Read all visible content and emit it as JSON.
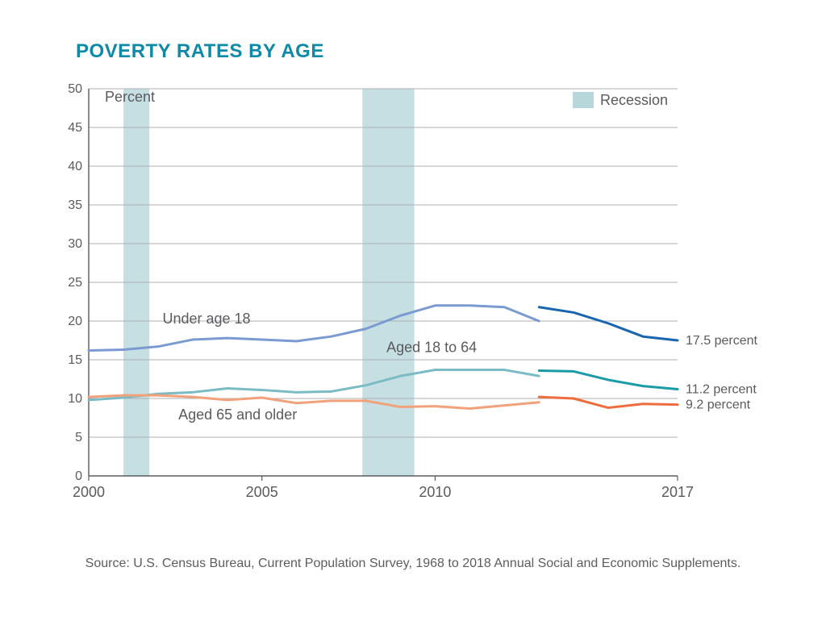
{
  "chart": {
    "type": "line",
    "title": "POVERTY RATES BY AGE",
    "title_color": "#0e8aa6",
    "title_fontsize": 24,
    "title_fontweight": 700,
    "background_color": "#ffffff",
    "plot_background": "#ffffff",
    "axis_color": "#595b5d",
    "grid_color": "#b0b2b4",
    "grid_stroke_width": 1,
    "text_color": "#595b5d",
    "tick_fontsize": 16,
    "label_fontsize": 18,
    "line_width": 3,
    "x": {
      "min": 2000,
      "max": 2017,
      "ticks": [
        2000,
        2005,
        2010,
        2017
      ]
    },
    "y": {
      "min": 0,
      "max": 50,
      "ticks": [
        0,
        5,
        10,
        15,
        20,
        25,
        30,
        35,
        40,
        45,
        50
      ],
      "unit_label": "Percent"
    },
    "recession_bands": {
      "color": "#b8d7db",
      "opacity": 0.8,
      "ranges": [
        [
          2001.0,
          2001.75
        ],
        [
          2007.9,
          2009.4
        ]
      ]
    },
    "legend": {
      "label": "Recession",
      "swatch_color": "#b8d7db"
    },
    "series": [
      {
        "name": "Under age 18",
        "label_pos": {
          "x": 2003.4,
          "y": 19.7
        },
        "end_label": "17.5 percent",
        "end_value": 17.5,
        "segments": [
          {
            "color": "#7a9ad1",
            "points": [
              [
                2000,
                16.2
              ],
              [
                2001,
                16.3
              ],
              [
                2002,
                16.7
              ],
              [
                2003,
                17.6
              ],
              [
                2004,
                17.8
              ],
              [
                2005,
                17.6
              ],
              [
                2006,
                17.4
              ],
              [
                2007,
                18.0
              ],
              [
                2008,
                19.0
              ],
              [
                2009,
                20.7
              ],
              [
                2010,
                22.0
              ],
              [
                2011,
                22.0
              ],
              [
                2012,
                21.8
              ],
              [
                2013,
                20.0
              ]
            ]
          },
          {
            "color": "#1865b0",
            "points": [
              [
                2013,
                21.8
              ],
              [
                2014,
                21.1
              ],
              [
                2015,
                19.7
              ],
              [
                2016,
                18.0
              ],
              [
                2017,
                17.5
              ]
            ]
          }
        ]
      },
      {
        "name": "Aged 18 to 64",
        "label_pos": {
          "x": 2009.9,
          "y": 16.0
        },
        "end_label": "11.2 percent",
        "end_value": 11.2,
        "segments": [
          {
            "color": "#7bbbc4",
            "points": [
              [
                2000,
                9.8
              ],
              [
                2001,
                10.1
              ],
              [
                2002,
                10.6
              ],
              [
                2003,
                10.8
              ],
              [
                2004,
                11.3
              ],
              [
                2005,
                11.1
              ],
              [
                2006,
                10.8
              ],
              [
                2007,
                10.9
              ],
              [
                2008,
                11.7
              ],
              [
                2009,
                12.9
              ],
              [
                2010,
                13.7
              ],
              [
                2011,
                13.7
              ],
              [
                2012,
                13.7
              ],
              [
                2013,
                12.9
              ]
            ]
          },
          {
            "color": "#1b9aa7",
            "points": [
              [
                2013,
                13.6
              ],
              [
                2014,
                13.5
              ],
              [
                2015,
                12.4
              ],
              [
                2016,
                11.6
              ],
              [
                2017,
                11.2
              ]
            ]
          }
        ]
      },
      {
        "name": "Aged 65 and older",
        "label_pos": {
          "x": 2004.3,
          "y": 7.3
        },
        "end_label": "9.2 percent",
        "end_value": 9.2,
        "segments": [
          {
            "color": "#f2a27b",
            "points": [
              [
                2000,
                10.2
              ],
              [
                2001,
                10.4
              ],
              [
                2002,
                10.4
              ],
              [
                2003,
                10.2
              ],
              [
                2004,
                9.8
              ],
              [
                2005,
                10.1
              ],
              [
                2006,
                9.4
              ],
              [
                2007,
                9.7
              ],
              [
                2008,
                9.7
              ],
              [
                2009,
                8.9
              ],
              [
                2010,
                9.0
              ],
              [
                2011,
                8.7
              ],
              [
                2012,
                9.1
              ],
              [
                2013,
                9.5
              ]
            ]
          },
          {
            "color": "#ed6d3e",
            "points": [
              [
                2013,
                10.2
              ],
              [
                2014,
                10.0
              ],
              [
                2015,
                8.8
              ],
              [
                2016,
                9.3
              ],
              [
                2017,
                9.2
              ]
            ]
          }
        ]
      }
    ],
    "source": "Source: U.S. Census Bureau, Current Population Survey, 1968 to 2018 Annual Social and Economic Supplements."
  }
}
